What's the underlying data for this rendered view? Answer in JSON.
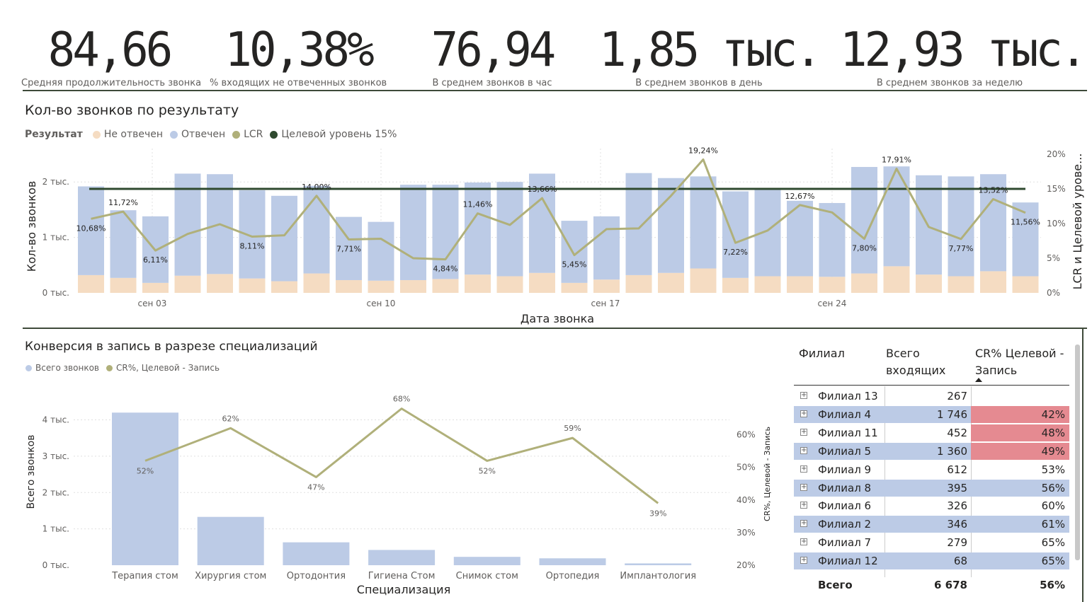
{
  "kpis": [
    {
      "value": "84,66",
      "label": "Средняя продолжительность звонка"
    },
    {
      "value": "10,38%",
      "label": "% входящих не отвеченных звонков"
    },
    {
      "value": "76,94",
      "label": "В среднем звонков в час"
    },
    {
      "value": "1,85 тыс.",
      "label": "В среднем звонков в день"
    },
    {
      "value": "12,93 тыс.",
      "label": "В среднем звонков за неделю"
    }
  ],
  "calls_chart": {
    "title": "Кол-во звонков по результату",
    "legend_title": "Результат",
    "legend": [
      "Не отвечен",
      "Отвечен",
      "LCR",
      "Целевой уровень 15%"
    ]
  },
  "conversion_chart": {
    "title": "Конверсия в запись в разрезе специализаций",
    "legend": [
      "Всего звонков",
      "CR%, Целевой - Запись"
    ]
  },
  "colors": {
    "answered": "#bccbe6",
    "unanswered": "#f5dcc2",
    "lcr": "#b0b07a",
    "target": "#2f4a2f",
    "cr_bad": "#e58a91",
    "row_alt": "#bccbe6"
  },
  "chart_data": [
    {
      "type": "bar",
      "stacked": true,
      "title": "Кол-во звонков по результату",
      "xlabel": "Дата звонка",
      "ylabel": "Кол-во звонков",
      "y2label": "LCR и Целевой урове...",
      "ylim": [
        0,
        2500
      ],
      "y2lim": [
        0,
        20
      ],
      "yticks": [
        "0 тыс.",
        "1 тыс.",
        "2 тыс."
      ],
      "y2ticks": [
        "0%",
        "5%",
        "10%",
        "15%",
        "20%"
      ],
      "xticks": [
        "сен 03",
        "сен 10",
        "сен 17",
        "сен 24"
      ],
      "series": [
        {
          "name": "Не отвечен",
          "values": [
            320,
            270,
            180,
            310,
            340,
            260,
            210,
            350,
            230,
            220,
            230,
            250,
            330,
            300,
            360,
            180,
            240,
            320,
            360,
            440,
            270,
            300,
            300,
            290,
            350,
            480,
            330,
            300,
            390,
            300
          ]
        },
        {
          "name": "Отвечен",
          "values": [
            1600,
            1220,
            1200,
            1840,
            1800,
            1590,
            1540,
            1580,
            1140,
            1060,
            1720,
            1700,
            1660,
            1700,
            1790,
            1120,
            1140,
            1840,
            1710,
            1660,
            1560,
            1560,
            1360,
            1330,
            1920,
            1800,
            1790,
            1800,
            1750,
            1330
          ]
        },
        {
          "name": "LCR",
          "values": [
            10.68,
            11.72,
            6.11,
            8.5,
            9.9,
            8.11,
            8.3,
            14.0,
            7.71,
            7.8,
            5.0,
            4.84,
            11.46,
            9.8,
            13.66,
            5.45,
            9.2,
            9.3,
            14.0,
            19.24,
            7.22,
            9.0,
            12.67,
            11.6,
            7.8,
            17.91,
            9.5,
            7.77,
            13.52,
            11.56
          ]
        },
        {
          "name": "Целевой уровень 15%",
          "values": [
            15,
            15,
            15,
            15,
            15,
            15,
            15,
            15,
            15,
            15,
            15,
            15,
            15,
            15,
            15,
            15,
            15,
            15,
            15,
            15,
            15,
            15,
            15,
            15,
            15,
            15,
            15,
            15,
            15,
            15
          ]
        }
      ],
      "lcr_labels": [
        {
          "index": 0,
          "text": "10,68%"
        },
        {
          "index": 1,
          "text": "11,72%"
        },
        {
          "index": 2,
          "text": "6,11%"
        },
        {
          "index": 5,
          "text": "8,11%"
        },
        {
          "index": 7,
          "text": "14,00%"
        },
        {
          "index": 8,
          "text": "7,71%"
        },
        {
          "index": 11,
          "text": "4,84%"
        },
        {
          "index": 12,
          "text": "11,46%"
        },
        {
          "index": 14,
          "text": "13,66%"
        },
        {
          "index": 15,
          "text": "5,45%"
        },
        {
          "index": 19,
          "text": "19,24%"
        },
        {
          "index": 20,
          "text": "7,22%"
        },
        {
          "index": 22,
          "text": "12,67%"
        },
        {
          "index": 24,
          "text": "7,80%"
        },
        {
          "index": 25,
          "text": "17,91%"
        },
        {
          "index": 27,
          "text": "7,77%"
        },
        {
          "index": 28,
          "text": "13,52%"
        },
        {
          "index": 29,
          "text": "11,56%"
        }
      ]
    },
    {
      "type": "bar",
      "title": "Конверсия в запись в разрезе специализаций",
      "xlabel": "Специализация",
      "ylabel": "Всего звонков",
      "y2label": "CR%, Целевой - Запись",
      "ylim": [
        0,
        4400
      ],
      "y2lim": [
        20,
        69
      ],
      "yticks": [
        "0 тыс.",
        "1 тыс.",
        "2 тыс.",
        "3 тыс.",
        "4 тыс."
      ],
      "y2ticks": [
        "20%",
        "30%",
        "40%",
        "50%",
        "60%"
      ],
      "categories": [
        "Терапия стом",
        "Хирургия стом",
        "Ортодонтия",
        "Гигиена Стом",
        "Снимок стом",
        "Ортопедия",
        "Имплантология"
      ],
      "series": [
        {
          "name": "Всего звонков",
          "values": [
            4200,
            1330,
            630,
            420,
            230,
            190,
            50
          ]
        },
        {
          "name": "CR%, Целевой - Запись",
          "values": [
            52,
            62,
            47,
            68,
            52,
            59,
            39
          ]
        }
      ],
      "cr_labels": [
        "52%",
        "62%",
        "47%",
        "68%",
        "52%",
        "59%",
        "39%"
      ]
    }
  ],
  "table": {
    "headers": {
      "branch": "Филиал",
      "total": "Всего входящих",
      "cr": "CR% Целевой - Запись"
    },
    "rows": [
      {
        "branch": "Филиал 13",
        "total": "267",
        "cr": ""
      },
      {
        "branch": "Филиал 4",
        "total": "1 746",
        "cr": "42%"
      },
      {
        "branch": "Филиал 11",
        "total": "452",
        "cr": "48%"
      },
      {
        "branch": "Филиал 5",
        "total": "1 360",
        "cr": "49%"
      },
      {
        "branch": "Филиал 9",
        "total": "612",
        "cr": "53%"
      },
      {
        "branch": "Филиал 8",
        "total": "395",
        "cr": "56%"
      },
      {
        "branch": "Филиал 6",
        "total": "326",
        "cr": "60%"
      },
      {
        "branch": "Филиал 2",
        "total": "346",
        "cr": "61%"
      },
      {
        "branch": "Филиал 7",
        "total": "279",
        "cr": "65%"
      },
      {
        "branch": "Филиал 12",
        "total": "68",
        "cr": "65%"
      }
    ],
    "total_row": {
      "label": "Всего",
      "total": "6 678",
      "cr": "56%"
    }
  }
}
